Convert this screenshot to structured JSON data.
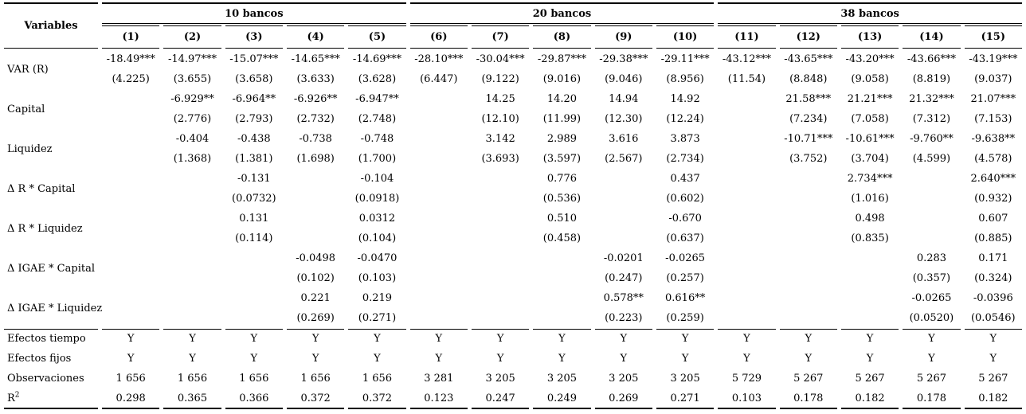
{
  "colors": {
    "text": "#000000",
    "background": "#ffffff",
    "rule": "#000000"
  },
  "table": {
    "variables_header": "Variables",
    "groups": [
      {
        "label": "10 bancos",
        "columns": [
          "(1)",
          "(2)",
          "(3)",
          "(4)",
          "(5)"
        ]
      },
      {
        "label": "20 bancos",
        "columns": [
          "(6)",
          "(7)",
          "(8)",
          "(9)",
          "(10)"
        ]
      },
      {
        "label": "38 bancos",
        "columns": [
          "(11)",
          "(12)",
          "(13)",
          "(14)",
          "(15)"
        ]
      }
    ],
    "coef_rows": [
      {
        "label": "VAR (R)",
        "coefs": [
          "-18.49***",
          "-14.97***",
          "-15.07***",
          "-14.65***",
          "-14.69***",
          "-28.10***",
          "-30.04***",
          "-29.87***",
          "-29.38***",
          "-29.11***",
          "-43.12***",
          "-43.65***",
          "-43.20***",
          "-43.66***",
          "-43.19***"
        ],
        "ses": [
          "(4.225)",
          "(3.655)",
          "(3.658)",
          "(3.633)",
          "(3.628)",
          "(6.447)",
          "(9.122)",
          "(9.016)",
          "(9.046)",
          "(8.956)",
          "(11.54)",
          "(8.848)",
          "(9.058)",
          "(8.819)",
          "(9.037)"
        ]
      },
      {
        "label": "Capital",
        "coefs": [
          "",
          "-6.929**",
          "-6.964**",
          "-6.926**",
          "-6.947**",
          "",
          "14.25",
          "14.20",
          "14.94",
          "14.92",
          "",
          "21.58***",
          "21.21***",
          "21.32***",
          "21.07***"
        ],
        "ses": [
          "",
          "(2.776)",
          "(2.793)",
          "(2.732)",
          "(2.748)",
          "",
          "(12.10)",
          "(11.99)",
          "(12.30)",
          "(12.24)",
          "",
          "(7.234)",
          "(7.058)",
          "(7.312)",
          "(7.153)"
        ]
      },
      {
        "label": "Liquidez",
        "coefs": [
          "",
          "-0.404",
          "-0.438",
          "-0.738",
          "-0.748",
          "",
          "3.142",
          "2.989",
          "3.616",
          "3.873",
          "",
          "-10.71***",
          "-10.61***",
          "-9.760**",
          "-9.638**"
        ],
        "ses": [
          "",
          "(1.368)",
          "(1.381)",
          "(1.698)",
          "(1.700)",
          "",
          "(3.693)",
          "(3.597)",
          "(2.567)",
          "(2.734)",
          "",
          "(3.752)",
          "(3.704)",
          "(4.599)",
          "(4.578)"
        ]
      },
      {
        "label": "Δ R * Capital",
        "coefs": [
          "",
          "",
          "-0.131",
          "",
          "-0.104",
          "",
          "",
          "0.776",
          "",
          "0.437",
          "",
          "",
          "2.734***",
          "",
          "2.640***"
        ],
        "ses": [
          "",
          "",
          "(0.0732)",
          "",
          "(0.0918)",
          "",
          "",
          "(0.536)",
          "",
          "(0.602)",
          "",
          "",
          "(1.016)",
          "",
          "(0.932)"
        ]
      },
      {
        "label": "Δ R * Liquidez",
        "coefs": [
          "",
          "",
          "0.131",
          "",
          "0.0312",
          "",
          "",
          "0.510",
          "",
          "-0.670",
          "",
          "",
          "0.498",
          "",
          "0.607"
        ],
        "ses": [
          "",
          "",
          "(0.114)",
          "",
          "(0.104)",
          "",
          "",
          "(0.458)",
          "",
          "(0.637)",
          "",
          "",
          "(0.835)",
          "",
          "(0.885)"
        ]
      },
      {
        "label": "Δ IGAE * Capital",
        "coefs": [
          "",
          "",
          "",
          "-0.0498",
          "-0.0470",
          "",
          "",
          "",
          "-0.0201",
          "-0.0265",
          "",
          "",
          "",
          "0.283",
          "0.171"
        ],
        "ses": [
          "",
          "",
          "",
          "(0.102)",
          "(0.103)",
          "",
          "",
          "",
          "(0.247)",
          "(0.257)",
          "",
          "",
          "",
          "(0.357)",
          "(0.324)"
        ]
      },
      {
        "label": "Δ IGAE * Liquidez",
        "coefs": [
          "",
          "",
          "",
          "0.221",
          "0.219",
          "",
          "",
          "",
          "0.578**",
          "0.616**",
          "",
          "",
          "",
          "-0.0265",
          "-0.0396"
        ],
        "ses": [
          "",
          "",
          "",
          "(0.269)",
          "(0.271)",
          "",
          "",
          "",
          "(0.223)",
          "(0.259)",
          "",
          "",
          "",
          "(0.0520)",
          "(0.0546)"
        ]
      }
    ],
    "bottom_rows": [
      {
        "label": "Efectos tiempo",
        "values": [
          "Y",
          "Y",
          "Y",
          "Y",
          "Y",
          "Y",
          "Y",
          "Y",
          "Y",
          "Y",
          "Y",
          "Y",
          "Y",
          "Y",
          "Y"
        ]
      },
      {
        "label": "Efectos fijos",
        "values": [
          "Y",
          "Y",
          "Y",
          "Y",
          "Y",
          "Y",
          "Y",
          "Y",
          "Y",
          "Y",
          "Y",
          "Y",
          "Y",
          "Y",
          "Y"
        ]
      },
      {
        "label": "Observaciones",
        "values": [
          "1 656",
          "1 656",
          "1 656",
          "1 656",
          "1 656",
          "3 281",
          "3 205",
          "3 205",
          "3 205",
          "3 205",
          "5 729",
          "5 267",
          "5 267",
          "5 267",
          "5 267"
        ]
      },
      {
        "label": "R",
        "sup": "2",
        "values": [
          "0.298",
          "0.365",
          "0.366",
          "0.372",
          "0.372",
          "0.123",
          "0.247",
          "0.249",
          "0.269",
          "0.271",
          "0.103",
          "0.178",
          "0.182",
          "0.178",
          "0.182"
        ]
      }
    ]
  }
}
